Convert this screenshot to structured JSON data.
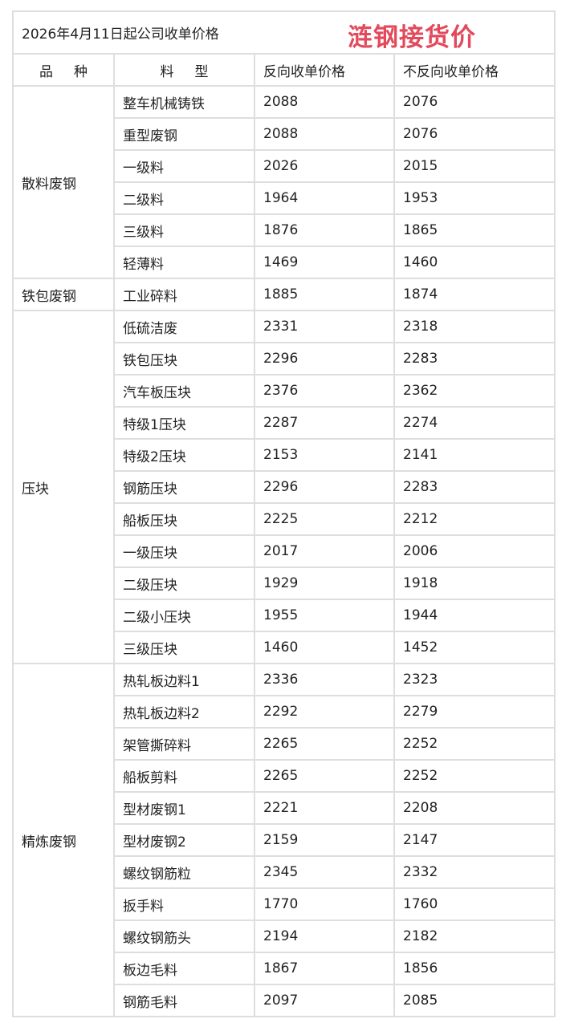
{
  "title": "2026年4月11日起公司收单价格",
  "stamp": "涟钢接货价",
  "colors": {
    "stamp": "#e24a5c",
    "border": "#dedede"
  },
  "headers": [
    "品种",
    "料型",
    "反向收单价格",
    "不反向收单价格"
  ],
  "groups": [
    {
      "category": "散料废钢",
      "rows": [
        [
          "整车机械铸铁",
          "2088",
          "2076"
        ],
        [
          "重型废钢",
          "2088",
          "2076"
        ],
        [
          "一级料",
          "2026",
          "2015"
        ],
        [
          "二级料",
          "1964",
          "1953"
        ],
        [
          "三级料",
          "1876",
          "1865"
        ],
        [
          "轻薄料",
          "1469",
          "1460"
        ]
      ]
    },
    {
      "category": "铁包废钢",
      "rows": [
        [
          "工业碎料",
          "1885",
          "1874"
        ]
      ]
    },
    {
      "category": "压块",
      "rows": [
        [
          "低硫洁废",
          "2331",
          "2318"
        ],
        [
          "铁包压块",
          "2296",
          "2283"
        ],
        [
          "汽车板压块",
          "2376",
          "2362"
        ],
        [
          "特级1压块",
          "2287",
          "2274"
        ],
        [
          "特级2压块",
          "2153",
          "2141"
        ],
        [
          "钢筋压块",
          "2296",
          "2283"
        ],
        [
          "船板压块",
          "2225",
          "2212"
        ],
        [
          "一级压块",
          "2017",
          "2006"
        ],
        [
          "二级压块",
          "1929",
          "1918"
        ],
        [
          "二级小压块",
          "1955",
          "1944"
        ],
        [
          "三级压块",
          "1460",
          "1452"
        ]
      ]
    },
    {
      "category": "精炼废钢",
      "rows": [
        [
          "热轧板边料1",
          "2336",
          "2323"
        ],
        [
          "热轧板边料2",
          "2292",
          "2279"
        ],
        [
          "架管撕碎料",
          "2265",
          "2252"
        ],
        [
          "船板剪料",
          "2265",
          "2252"
        ],
        [
          "型材废钢1",
          "2221",
          "2208"
        ],
        [
          "型材废钢2",
          "2159",
          "2147"
        ],
        [
          "螺纹钢筋粒",
          "2345",
          "2332"
        ],
        [
          "扳手料",
          "1770",
          "1760"
        ],
        [
          "螺纹钢筋头",
          "2194",
          "2182"
        ],
        [
          "板边毛料",
          "1867",
          "1856"
        ],
        [
          "钢筋毛料",
          "2097",
          "2085"
        ]
      ]
    }
  ]
}
